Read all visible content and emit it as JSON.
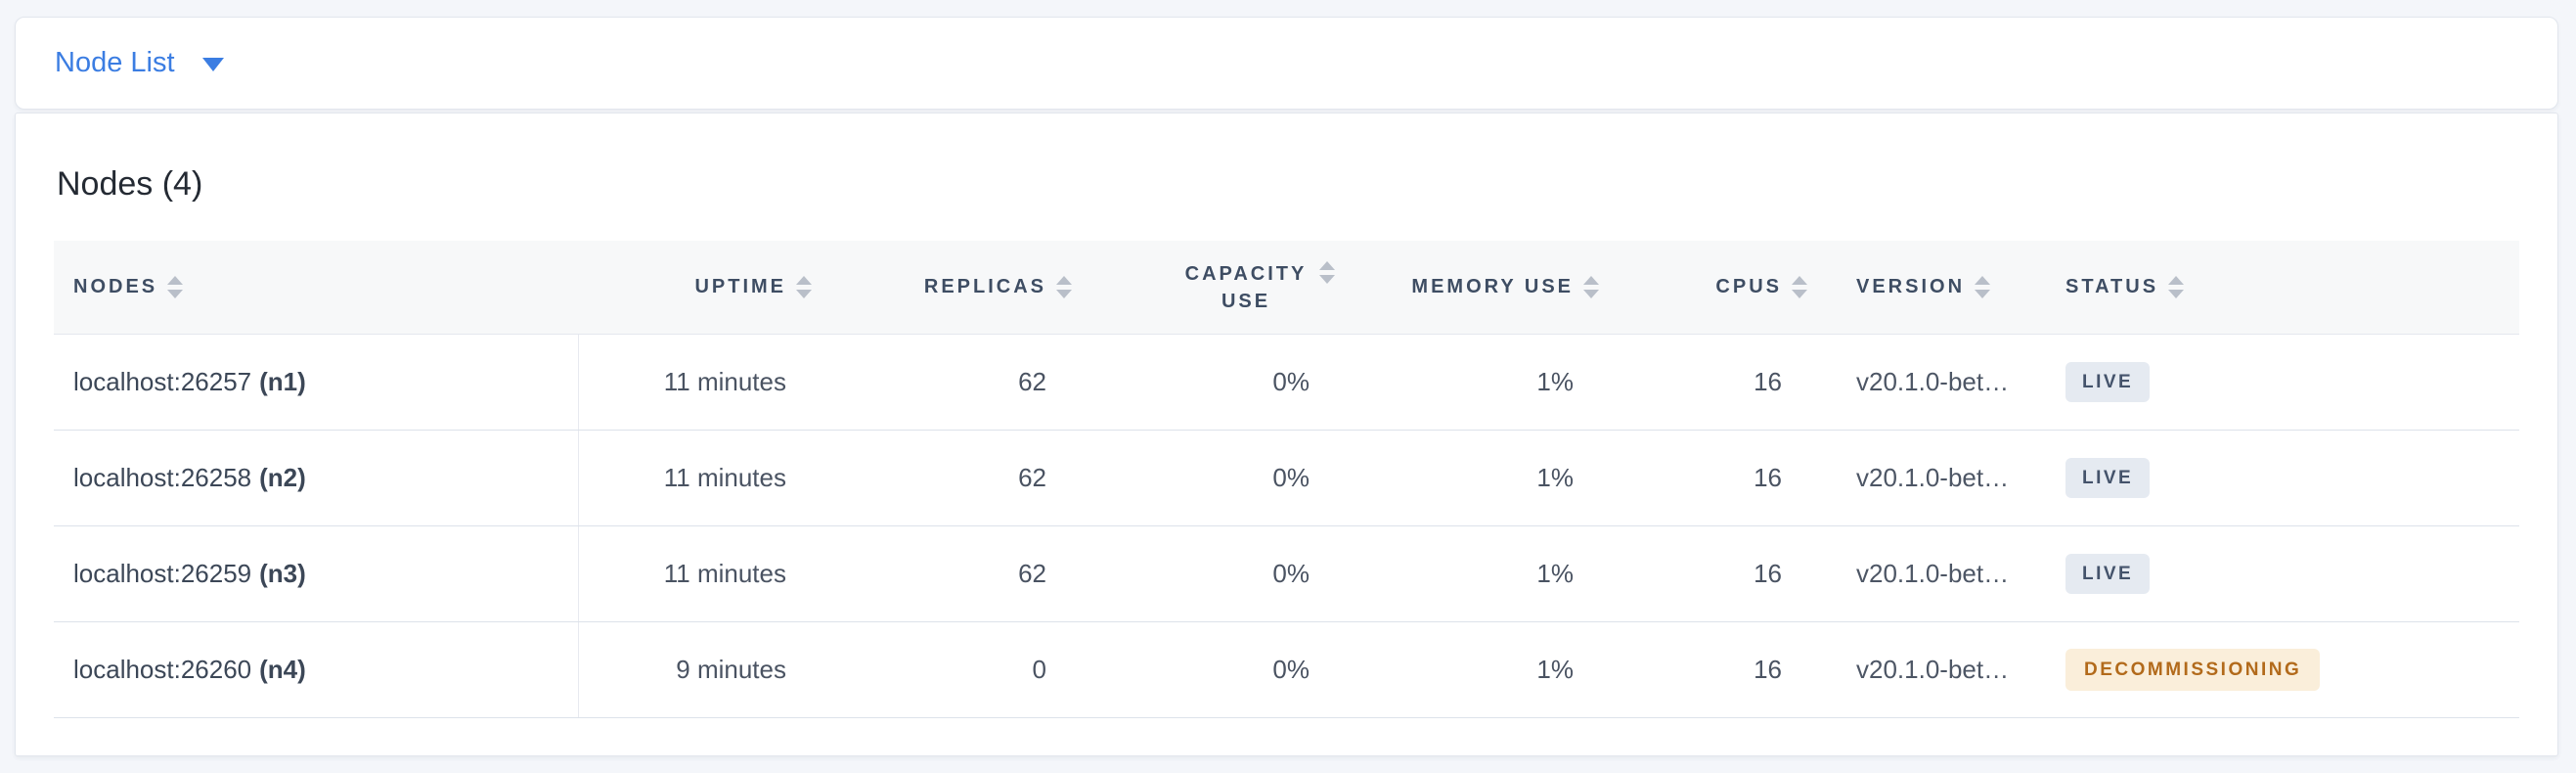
{
  "view_selector": {
    "label": "Node List",
    "accent_color": "#3b7de2"
  },
  "summary": {
    "title": "Nodes (4)"
  },
  "table": {
    "columns": [
      {
        "key": "nodes",
        "label": "NODES",
        "align": "left"
      },
      {
        "key": "uptime",
        "label": "UPTIME",
        "align": "right"
      },
      {
        "key": "replicas",
        "label": "REPLICAS",
        "align": "right"
      },
      {
        "key": "capacity_use",
        "label": "CAPACITY USE",
        "align": "right"
      },
      {
        "key": "memory_use",
        "label": "MEMORY USE",
        "align": "right"
      },
      {
        "key": "cpus",
        "label": "CPUS",
        "align": "right"
      },
      {
        "key": "version",
        "label": "VERSION",
        "align": "left"
      },
      {
        "key": "status",
        "label": "STATUS",
        "align": "left"
      }
    ],
    "rows": [
      {
        "address": "localhost:26257",
        "node_id": "(n1)",
        "uptime": "11 minutes",
        "replicas": "62",
        "capacity_use": "0%",
        "memory_use": "1%",
        "cpus": "16",
        "version": "v20.1.0-bet…",
        "status": "LIVE"
      },
      {
        "address": "localhost:26258",
        "node_id": "(n2)",
        "uptime": "11 minutes",
        "replicas": "62",
        "capacity_use": "0%",
        "memory_use": "1%",
        "cpus": "16",
        "version": "v20.1.0-bet…",
        "status": "LIVE"
      },
      {
        "address": "localhost:26259",
        "node_id": "(n3)",
        "uptime": "11 minutes",
        "replicas": "62",
        "capacity_use": "0%",
        "memory_use": "1%",
        "cpus": "16",
        "version": "v20.1.0-bet…",
        "status": "LIVE"
      },
      {
        "address": "localhost:26260",
        "node_id": "(n4)",
        "uptime": "9 minutes",
        "replicas": "0",
        "capacity_use": "0%",
        "memory_use": "1%",
        "cpus": "16",
        "version": "v20.1.0-bet…",
        "status": "DECOMMISSIONING"
      }
    ],
    "status_colors": {
      "live_bg": "#e5eaf1",
      "live_text": "#44536b",
      "decommissioning_bg": "#faeeda",
      "decommissioning_text": "#b26a1b"
    }
  }
}
